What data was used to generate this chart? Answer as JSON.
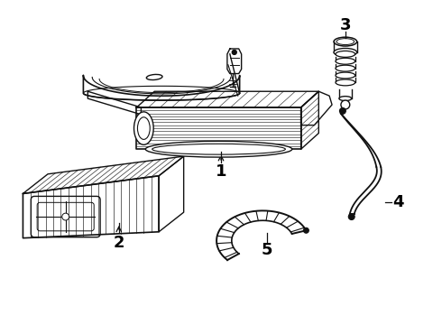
{
  "background_color": "#ffffff",
  "line_color": "#111111",
  "label_color": "#000000",
  "figsize": [
    4.9,
    3.6
  ],
  "dpi": 100
}
